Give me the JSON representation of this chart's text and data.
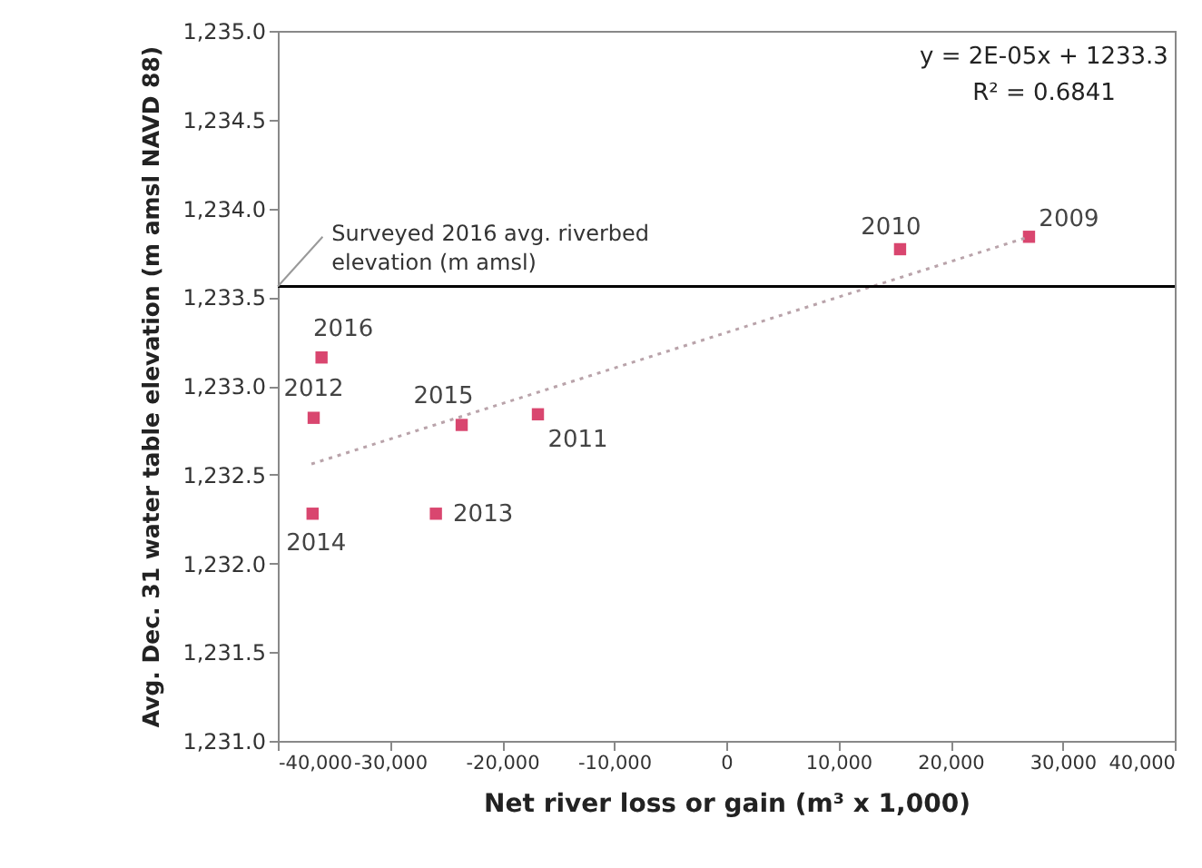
{
  "chart_data": {
    "type": "scatter",
    "xlabel": "Net river loss or gain (m³ x 1,000)",
    "ylabel": "Avg. Dec. 31 water table elevation (m amsl NAVD 88)",
    "xlim": [
      -40000,
      40000
    ],
    "xticks": [
      {
        "value": -40000,
        "label": "-40,000"
      },
      {
        "value": -30000,
        "label": "-30,000"
      },
      {
        "value": -20000,
        "label": "-20,000"
      },
      {
        "value": -10000,
        "label": "-10,000"
      },
      0,
      {
        "value": 10000,
        "label": "10,000"
      },
      {
        "value": 20000,
        "label": "20,000"
      },
      {
        "value": 30000,
        "label": "30,000"
      },
      {
        "value": 40000,
        "label": "40,000"
      }
    ],
    "ylim": [
      1231.0,
      1235.0
    ],
    "yticks": [
      {
        "value": 1231.0,
        "label": "1,231.0"
      },
      {
        "value": 1231.5,
        "label": "1,231.5"
      },
      {
        "value": 1232.0,
        "label": "1,232.0"
      },
      {
        "value": 1232.5,
        "label": "1,232.5"
      },
      {
        "value": 1233.0,
        "label": "1,233.0"
      },
      {
        "value": 1233.5,
        "label": "1,233.5"
      },
      {
        "value": 1234.0,
        "label": "1,234.0"
      },
      {
        "value": 1234.5,
        "label": "1,234.5"
      },
      {
        "value": 1235.0,
        "label": "1,235.0"
      }
    ],
    "grid": false,
    "series": [
      {
        "color": "#d9466f",
        "marker": "square",
        "x": [
          27000,
          15500,
          -16800,
          -36800,
          -25900,
          -36900,
          -23600,
          -36100
        ],
        "values": [
          1233.84,
          1233.77,
          1232.84,
          1232.82,
          1232.28,
          1232.28,
          1232.78,
          1233.16
        ]
      },
      {
        "type": "line",
        "color": "#b9a3aa",
        "line_style": "dotted",
        "x": [
          -37000,
          27000
        ],
        "values": [
          1232.56,
          1233.84
        ]
      }
    ],
    "ref_lines": [
      {
        "axis": "y",
        "value": 1233.56,
        "label": "Surveyed 2016 avg. riverbed elevation (m amsl)",
        "color": "#000000"
      }
    ],
    "annotations": [
      {
        "text": "2009",
        "x": 27000,
        "y": 1233.84
      },
      {
        "text": "2010",
        "x": 15500,
        "y": 1233.77
      },
      {
        "text": "2011",
        "x": -16800,
        "y": 1232.84
      },
      {
        "text": "2012",
        "x": -36800,
        "y": 1232.82
      },
      {
        "text": "2013",
        "x": -25900,
        "y": 1232.28
      },
      {
        "text": "2014",
        "x": -36900,
        "y": 1232.28
      },
      {
        "text": "2015",
        "x": -23600,
        "y": 1232.78
      },
      {
        "text": "2016",
        "x": -36100,
        "y": 1233.16
      },
      "y = 2E-05x + 1233.3",
      "R² = 0.6841"
    ]
  }
}
